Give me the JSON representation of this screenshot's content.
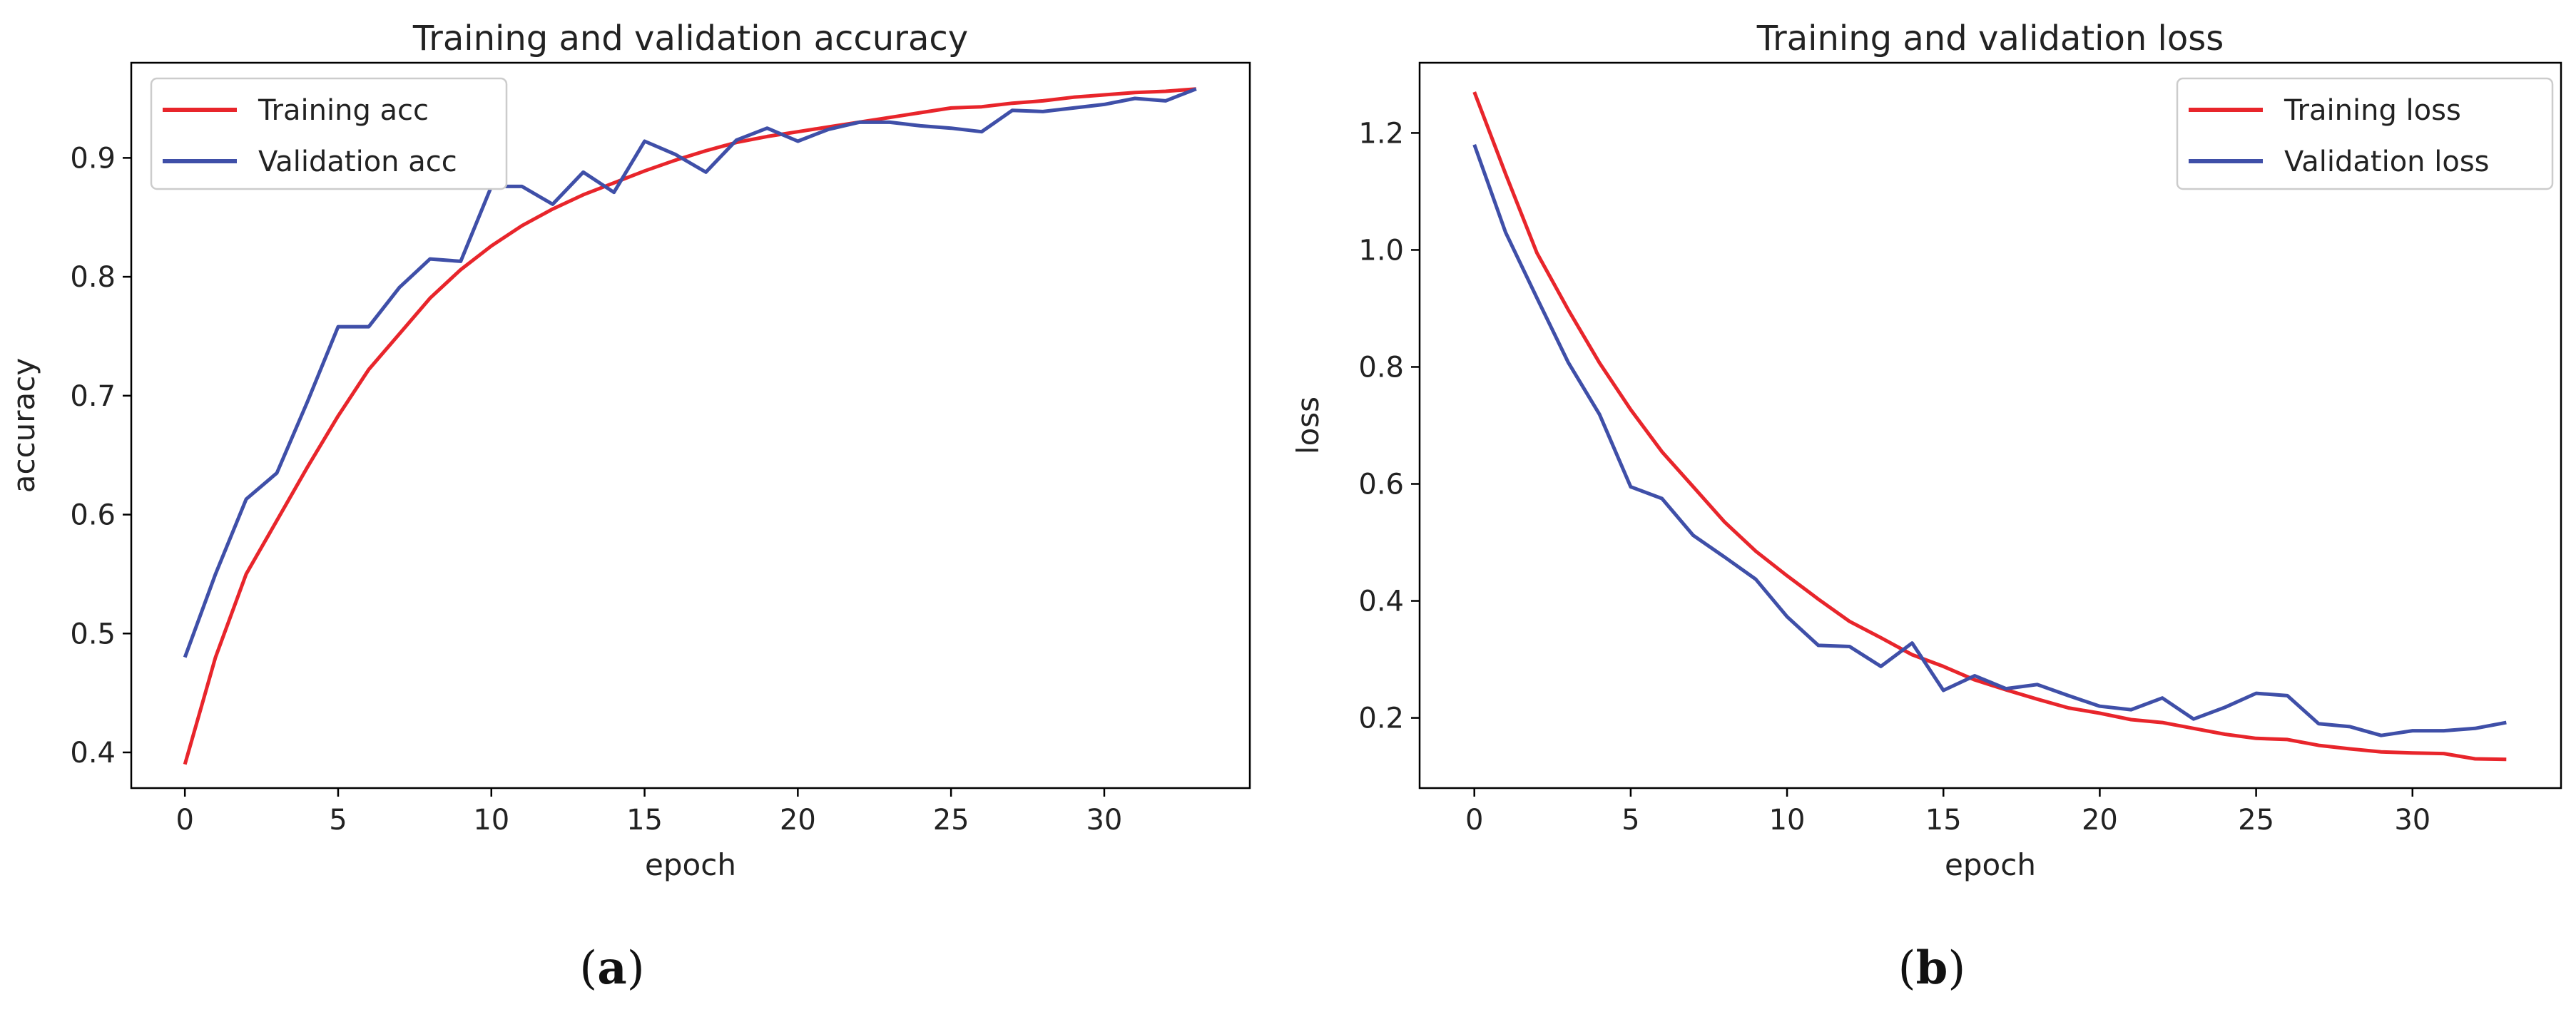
{
  "chart_data": [
    {
      "type": "line",
      "title": "Training and validation accuracy",
      "xlabel": "epoch",
      "ylabel": "accuracy",
      "xlim": [
        -1.75,
        34.75
      ],
      "ylim": [
        0.37,
        0.98
      ],
      "xticks": [
        0,
        5,
        10,
        15,
        20,
        25,
        30
      ],
      "yticks": [
        0.4,
        0.5,
        0.6,
        0.7,
        0.8,
        0.9
      ],
      "ytick_labels": [
        "0.4",
        "0.5",
        "0.6",
        "0.7",
        "0.8",
        "0.9"
      ],
      "legend_position": "top-left",
      "grid": false,
      "x": [
        0,
        1,
        2,
        3,
        4,
        5,
        6,
        7,
        8,
        9,
        10,
        11,
        12,
        13,
        14,
        15,
        16,
        17,
        18,
        19,
        20,
        21,
        22,
        23,
        24,
        25,
        26,
        27,
        28,
        29,
        30,
        31,
        32,
        33
      ],
      "series": [
        {
          "name": "Training acc",
          "color": "#e8252b",
          "values": [
            0.39,
            0.48,
            0.55,
            0.595,
            0.64,
            0.683,
            0.722,
            0.752,
            0.782,
            0.806,
            0.826,
            0.843,
            0.857,
            0.869,
            0.879,
            0.889,
            0.898,
            0.906,
            0.913,
            0.918,
            0.922,
            0.926,
            0.93,
            0.934,
            0.938,
            0.942,
            0.943,
            0.946,
            0.948,
            0.951,
            0.953,
            0.955,
            0.956,
            0.958
          ]
        },
        {
          "name": "Validation acc",
          "color": "#3f4fa8",
          "values": [
            0.48,
            0.55,
            0.613,
            0.635,
            0.695,
            0.758,
            0.758,
            0.791,
            0.815,
            0.813,
            0.876,
            0.876,
            0.861,
            0.888,
            0.871,
            0.914,
            0.903,
            0.888,
            0.915,
            0.925,
            0.914,
            0.924,
            0.93,
            0.93,
            0.927,
            0.925,
            0.922,
            0.94,
            0.939,
            0.942,
            0.945,
            0.95,
            0.948,
            0.958
          ]
        }
      ],
      "caption": "a"
    },
    {
      "type": "line",
      "title": "Training and validation loss",
      "xlabel": "epoch",
      "ylabel": "loss",
      "xlim": [
        -1.75,
        34.75
      ],
      "ylim": [
        0.08,
        1.32
      ],
      "xticks": [
        0,
        5,
        10,
        15,
        20,
        25,
        30
      ],
      "yticks": [
        0.2,
        0.4,
        0.6,
        0.8,
        1.0,
        1.2
      ],
      "ytick_labels": [
        "0.2",
        "0.4",
        "0.6",
        "0.8",
        "1.0",
        "1.2"
      ],
      "legend_position": "top-right",
      "grid": false,
      "x": [
        0,
        1,
        2,
        3,
        4,
        5,
        6,
        7,
        8,
        9,
        10,
        11,
        12,
        13,
        14,
        15,
        16,
        17,
        18,
        19,
        20,
        21,
        22,
        23,
        24,
        25,
        26,
        27,
        28,
        29,
        30,
        31,
        32,
        33
      ],
      "series": [
        {
          "name": "Training loss",
          "color": "#e8252b",
          "values": [
            1.27,
            1.13,
            0.995,
            0.898,
            0.807,
            0.727,
            0.655,
            0.595,
            0.535,
            0.485,
            0.443,
            0.403,
            0.365,
            0.337,
            0.308,
            0.288,
            0.265,
            0.248,
            0.232,
            0.217,
            0.208,
            0.197,
            0.192,
            0.182,
            0.172,
            0.165,
            0.163,
            0.153,
            0.147,
            0.142,
            0.14,
            0.139,
            0.13,
            0.129
          ]
        },
        {
          "name": "Validation loss",
          "color": "#3f4fa8",
          "values": [
            1.18,
            1.03,
            0.918,
            0.808,
            0.719,
            0.595,
            0.575,
            0.512,
            0.475,
            0.437,
            0.373,
            0.324,
            0.322,
            0.288,
            0.328,
            0.247,
            0.272,
            0.25,
            0.257,
            0.238,
            0.22,
            0.214,
            0.234,
            0.198,
            0.218,
            0.242,
            0.238,
            0.19,
            0.185,
            0.17,
            0.178,
            0.178,
            0.182,
            0.192
          ]
        }
      ],
      "caption": "b"
    }
  ]
}
